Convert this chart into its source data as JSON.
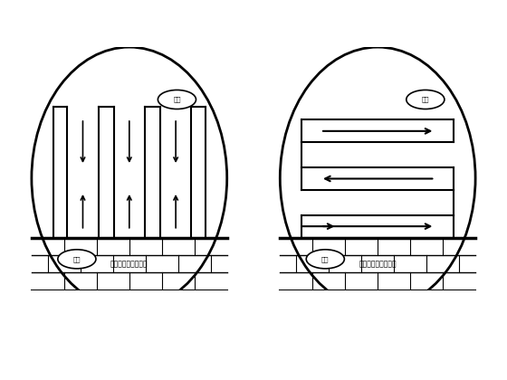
{
  "bg_color": "#ffffff",
  "line_color": "#000000",
  "label_qidian": "起点",
  "label_zhongdian": "终点",
  "label_bottom": "下台阶控制爆破开挖",
  "fig_width": 5.6,
  "fig_height": 4.2,
  "dpi": 100
}
